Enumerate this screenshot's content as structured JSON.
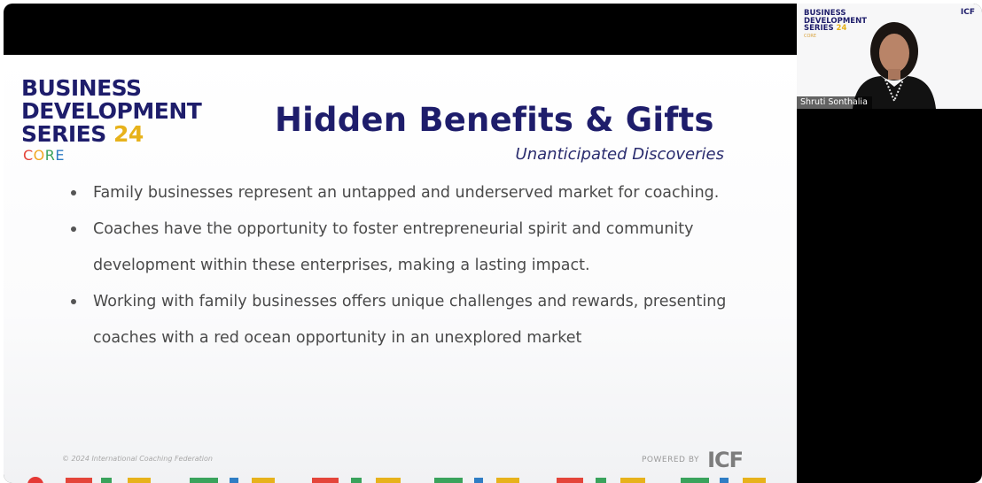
{
  "logo": {
    "line1": "BUSINESS",
    "line2": "DEVELOPMENT",
    "line3_text": "SERIES",
    "line3_number": "24",
    "core_letters": [
      "C",
      "O",
      "R",
      "E"
    ]
  },
  "slide": {
    "title": "Hidden Benefits & Gifts",
    "subtitle": "Unanticipated Discoveries",
    "bullets": [
      "Family businesses represent an untapped and underserved market for coaching.",
      "Coaches have the opportunity to foster entrepreneurial spirit and community development within these enterprises, making a lasting impact.",
      "Working with family businesses offers unique challenges and rewards, presenting coaches with a red ocean opportunity in an unexplored market"
    ],
    "copyright": "© 2024 International Coaching Federation",
    "powered_by": "POWERED BY",
    "powered_brand": "ICF"
  },
  "participant": {
    "name": "Shruti Sonthalia",
    "tile_logo": {
      "line1": "BUSINESS",
      "line2": "DEVELOPMENT",
      "line3_text": "SERIES",
      "line3_number": "24",
      "core": "CORE"
    },
    "tile_brand": "ICF"
  },
  "colors": {
    "navy": "#1e1d6b",
    "gold": "#e7b21b",
    "strip": [
      "#e4453a",
      "#3aa35c",
      "#e7b21b",
      "#2f7dc4",
      "#e4453a",
      "#3aa35c",
      "#e7b21b",
      "#2f7dc4"
    ]
  }
}
